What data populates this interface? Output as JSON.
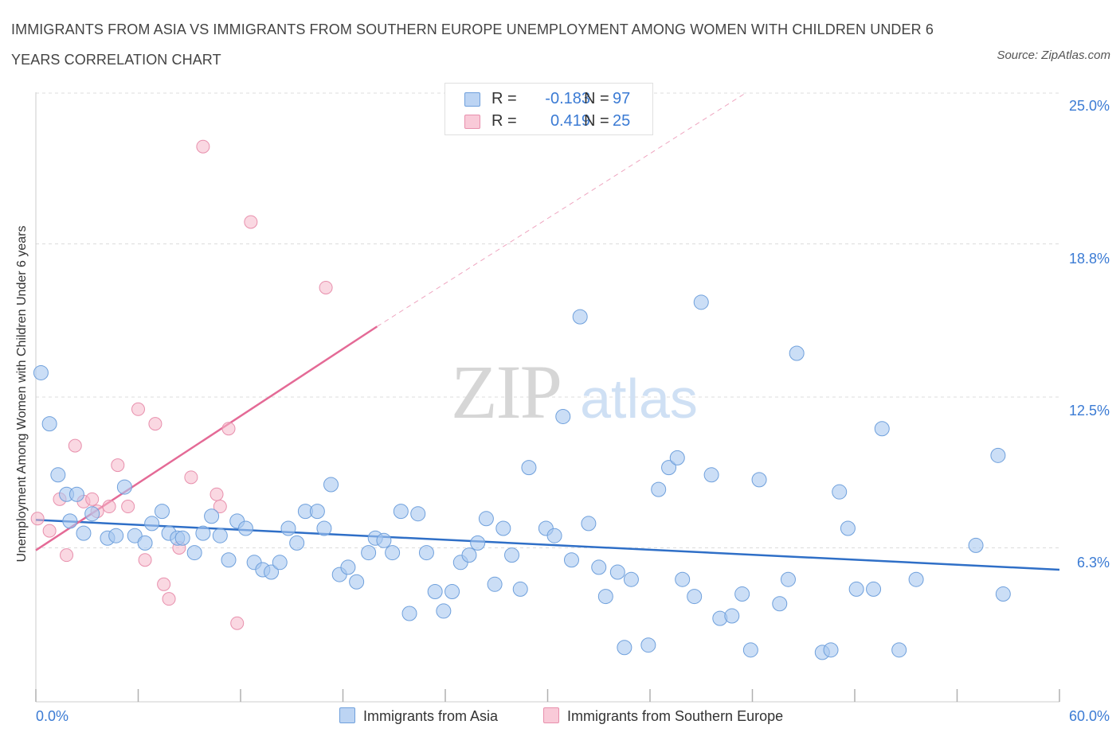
{
  "title": "IMMIGRANTS FROM ASIA VS IMMIGRANTS FROM SOUTHERN EUROPE UNEMPLOYMENT AMONG WOMEN WITH CHILDREN UNDER 6 YEARS CORRELATION CHART",
  "source": "Source: ZipAtlas.com",
  "watermark": {
    "zip": "ZIP",
    "atlas": "atlas"
  },
  "stats": [
    {
      "r_label": "R =",
      "r_value": "-0.183",
      "n_label": "N =",
      "n_value": "97",
      "color": "#a9c8f0"
    },
    {
      "r_label": "R =",
      "r_value": "0.419",
      "n_label": "N =",
      "n_value": "25",
      "color": "#f5b8cb"
    }
  ],
  "legend": [
    {
      "label": "Immigrants from Asia",
      "color": "#a9c8f0"
    },
    {
      "label": "Immigrants from Southern Europe",
      "color": "#f5b8cb"
    }
  ],
  "colors": {
    "asia_fill": "#a9c8f0",
    "asia_stroke": "#6fa0dc",
    "asia_line": "#2f6fc7",
    "europe_fill": "#f5b8cb",
    "europe_stroke": "#e890ad",
    "europe_line": "#e46a96",
    "tick_label": "#3b7bd4",
    "grid": "#dcdcdc"
  },
  "chart_data": {
    "type": "scatter",
    "title": "IMMIGRANTS FROM ASIA VS IMMIGRANTS FROM SOUTHERN EUROPE UNEMPLOYMENT AMONG WOMEN WITH CHILDREN UNDER 6 YEARS CORRELATION CHART",
    "xlabel": "",
    "ylabel": "Unemployment Among Women with Children Under 6 years",
    "xlim": [
      0,
      60
    ],
    "ylim": [
      0,
      25
    ],
    "x_tick_labels": [
      "0.0%",
      "60.0%"
    ],
    "y_ticks": [
      6.3,
      12.5,
      18.8,
      25.0
    ],
    "y_tick_labels": [
      "6.3%",
      "12.5%",
      "18.8%",
      "25.0%"
    ],
    "grid": "horizontal dashed",
    "legend_position": "bottom",
    "series": [
      {
        "name": "Immigrants from Asia",
        "points": [
          [
            0.3,
            13.5
          ],
          [
            0.8,
            11.4
          ],
          [
            1.3,
            9.3
          ],
          [
            1.8,
            8.5
          ],
          [
            2.0,
            7.4
          ],
          [
            2.4,
            8.5
          ],
          [
            2.8,
            6.9
          ],
          [
            3.3,
            7.7
          ],
          [
            4.2,
            6.7
          ],
          [
            4.7,
            6.8
          ],
          [
            5.2,
            8.8
          ],
          [
            5.8,
            6.8
          ],
          [
            6.4,
            6.5
          ],
          [
            6.8,
            7.3
          ],
          [
            7.4,
            7.8
          ],
          [
            7.8,
            6.9
          ],
          [
            8.3,
            6.7
          ],
          [
            8.6,
            6.7
          ],
          [
            9.3,
            6.1
          ],
          [
            9.8,
            6.9
          ],
          [
            10.3,
            7.6
          ],
          [
            10.8,
            6.8
          ],
          [
            11.3,
            5.8
          ],
          [
            11.8,
            7.4
          ],
          [
            12.3,
            7.1
          ],
          [
            12.8,
            5.7
          ],
          [
            13.3,
            5.4
          ],
          [
            13.8,
            5.3
          ],
          [
            14.3,
            5.7
          ],
          [
            14.8,
            7.1
          ],
          [
            15.3,
            6.5
          ],
          [
            15.8,
            7.8
          ],
          [
            16.5,
            7.8
          ],
          [
            16.9,
            7.1
          ],
          [
            17.3,
            8.9
          ],
          [
            17.8,
            5.2
          ],
          [
            18.3,
            5.5
          ],
          [
            18.8,
            4.9
          ],
          [
            19.5,
            6.1
          ],
          [
            19.9,
            6.7
          ],
          [
            20.4,
            6.6
          ],
          [
            20.9,
            6.1
          ],
          [
            21.4,
            7.8
          ],
          [
            21.9,
            3.6
          ],
          [
            22.4,
            7.7
          ],
          [
            22.9,
            6.1
          ],
          [
            23.4,
            4.5
          ],
          [
            23.9,
            3.7
          ],
          [
            24.4,
            4.5
          ],
          [
            24.9,
            5.7
          ],
          [
            25.4,
            6.0
          ],
          [
            25.9,
            6.5
          ],
          [
            26.4,
            7.5
          ],
          [
            26.9,
            4.8
          ],
          [
            27.4,
            7.1
          ],
          [
            27.9,
            6.0
          ],
          [
            28.4,
            4.6
          ],
          [
            28.9,
            9.6
          ],
          [
            29.9,
            7.1
          ],
          [
            30.4,
            6.8
          ],
          [
            30.9,
            11.7
          ],
          [
            31.4,
            5.8
          ],
          [
            31.9,
            15.8
          ],
          [
            32.4,
            7.3
          ],
          [
            33.0,
            5.5
          ],
          [
            33.4,
            4.3
          ],
          [
            34.1,
            5.3
          ],
          [
            34.5,
            2.2
          ],
          [
            34.9,
            5.0
          ],
          [
            35.9,
            2.3
          ],
          [
            36.5,
            8.7
          ],
          [
            37.1,
            9.6
          ],
          [
            37.6,
            10.0
          ],
          [
            37.9,
            5.0
          ],
          [
            38.6,
            4.3
          ],
          [
            39.0,
            16.4
          ],
          [
            39.6,
            9.3
          ],
          [
            40.1,
            3.4
          ],
          [
            40.8,
            3.5
          ],
          [
            41.4,
            4.4
          ],
          [
            41.9,
            2.1
          ],
          [
            42.4,
            9.1
          ],
          [
            43.6,
            4.0
          ],
          [
            44.1,
            5.0
          ],
          [
            44.6,
            14.3
          ],
          [
            46.1,
            2.0
          ],
          [
            46.6,
            2.1
          ],
          [
            47.1,
            8.6
          ],
          [
            47.6,
            7.1
          ],
          [
            48.1,
            4.6
          ],
          [
            49.1,
            4.6
          ],
          [
            49.6,
            11.2
          ],
          [
            50.6,
            2.1
          ],
          [
            51.6,
            5.0
          ],
          [
            55.1,
            6.4
          ],
          [
            56.4,
            10.1
          ],
          [
            56.7,
            4.4
          ]
        ]
      },
      {
        "name": "Immigrants from Southern Europe",
        "points": [
          [
            0.1,
            7.5
          ],
          [
            0.8,
            7.0
          ],
          [
            1.4,
            8.3
          ],
          [
            1.8,
            6.0
          ],
          [
            2.3,
            10.5
          ],
          [
            2.8,
            8.2
          ],
          [
            3.3,
            8.3
          ],
          [
            3.6,
            7.8
          ],
          [
            4.3,
            8.0
          ],
          [
            4.8,
            9.7
          ],
          [
            5.4,
            8.0
          ],
          [
            6.0,
            12.0
          ],
          [
            6.4,
            5.8
          ],
          [
            7.0,
            11.4
          ],
          [
            7.5,
            4.8
          ],
          [
            7.8,
            4.2
          ],
          [
            8.4,
            6.3
          ],
          [
            9.1,
            9.2
          ],
          [
            9.8,
            22.8
          ],
          [
            10.6,
            8.5
          ],
          [
            10.8,
            8.0
          ],
          [
            11.3,
            11.2
          ],
          [
            11.8,
            3.2
          ],
          [
            12.6,
            19.7
          ],
          [
            17.0,
            17.0
          ]
        ]
      }
    ],
    "trend_lines": [
      {
        "series": "Immigrants from Asia",
        "from": [
          0,
          7.45
        ],
        "to": [
          60,
          5.4
        ]
      },
      {
        "series": "Immigrants from Southern Europe",
        "from": [
          0,
          6.2
        ],
        "to": [
          20.0,
          15.4
        ],
        "extends_dashed_to": [
          41.6,
          25.0
        ]
      }
    ]
  }
}
